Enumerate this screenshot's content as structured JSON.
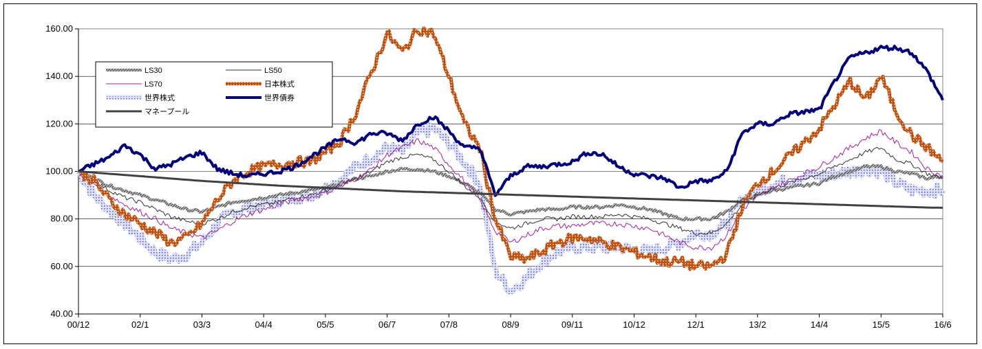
{
  "chart_data": {
    "type": "line",
    "title": "",
    "xlabel": "",
    "ylabel": "",
    "ylim": [
      40,
      160
    ],
    "y_ticks": [
      "40.00",
      "60.00",
      "80.00",
      "100.00",
      "120.00",
      "140.00",
      "160.00"
    ],
    "x_tick_labels": [
      "00/12",
      "02/1",
      "03/3",
      "04/4",
      "05/5",
      "06/7",
      "07/8",
      "08/9",
      "09/11",
      "10/12",
      "12/1",
      "13/2",
      "14/4",
      "15/5",
      "16/6"
    ],
    "grid": "horizontal",
    "legend_placement": "top-left",
    "series": [
      {
        "name": "LS30",
        "color": "#808080",
        "style": "thick-hatched",
        "values": [
          100,
          97,
          94,
          92,
          90,
          88,
          86,
          84,
          83,
          85,
          87,
          88,
          89,
          90,
          91,
          92,
          93,
          95,
          97,
          98,
          100,
          101,
          101,
          100,
          98,
          95,
          91,
          84,
          82,
          83,
          84,
          84,
          85,
          85,
          85,
          86,
          85,
          84,
          82,
          80,
          80,
          80,
          83,
          88,
          90,
          92,
          93,
          94,
          95,
          98,
          100,
          102,
          102,
          100,
          99,
          97,
          98
        ]
      },
      {
        "name": "LS50",
        "color": "#303030",
        "style": "thin",
        "values": [
          100,
          96,
          92,
          89,
          87,
          84,
          81,
          79,
          78,
          80,
          83,
          85,
          86,
          87,
          89,
          90,
          92,
          94,
          97,
          100,
          104,
          106,
          107,
          105,
          100,
          94,
          89,
          79,
          76,
          78,
          80,
          80,
          81,
          81,
          81,
          82,
          81,
          80,
          78,
          76,
          74,
          74,
          78,
          86,
          90,
          93,
          95,
          97,
          99,
          102,
          105,
          108,
          110,
          105,
          103,
          99,
          97
        ]
      },
      {
        "name": "LS70",
        "color": "#a020a0",
        "style": "thin",
        "values": [
          100,
          95,
          90,
          86,
          83,
          80,
          76,
          74,
          72,
          75,
          79,
          82,
          84,
          86,
          88,
          89,
          91,
          94,
          97,
          101,
          107,
          110,
          113,
          110,
          103,
          96,
          88,
          75,
          70,
          73,
          76,
          77,
          77,
          78,
          78,
          78,
          77,
          76,
          73,
          70,
          68,
          68,
          73,
          84,
          89,
          93,
          96,
          99,
          102,
          106,
          110,
          114,
          117,
          112,
          108,
          101,
          98
        ]
      },
      {
        "name": "日本株式",
        "color": "#b8470c",
        "style": "thick-dotted",
        "values": [
          100,
          96,
          88,
          82,
          78,
          74,
          70,
          72,
          78,
          88,
          96,
          100,
          102,
          103,
          104,
          104,
          108,
          113,
          125,
          142,
          158,
          150,
          160,
          158,
          140,
          120,
          110,
          80,
          64,
          63,
          66,
          70,
          72,
          72,
          70,
          68,
          66,
          64,
          62,
          62,
          60,
          60,
          65,
          85,
          95,
          100,
          106,
          112,
          118,
          128,
          138,
          130,
          140,
          125,
          115,
          110,
          104
        ]
      },
      {
        "name": "世界株式",
        "color": "#6470c8",
        "style": "thick-dotted",
        "values": [
          100,
          90,
          84,
          78,
          72,
          66,
          63,
          65,
          70,
          78,
          83,
          85,
          86,
          88,
          89,
          90,
          93,
          97,
          102,
          106,
          110,
          108,
          116,
          118,
          112,
          104,
          95,
          58,
          50,
          55,
          62,
          66,
          68,
          68,
          68,
          68,
          67,
          66,
          68,
          70,
          74,
          74,
          78,
          88,
          92,
          95,
          96,
          98,
          98,
          99,
          100,
          101,
          100,
          95,
          92,
          92,
          92
        ]
      },
      {
        "name": "世界債券",
        "color": "#00007a",
        "style": "thick",
        "values": [
          100,
          103,
          106,
          111,
          107,
          101,
          103,
          106,
          108,
          101,
          99,
          98,
          99,
          100,
          102,
          106,
          110,
          114,
          112,
          116,
          116,
          113,
          120,
          123,
          117,
          110,
          110,
          90,
          98,
          102,
          102,
          103,
          104,
          108,
          107,
          102,
          99,
          98,
          97,
          93,
          96,
          96,
          100,
          116,
          120,
          120,
          124,
          125,
          126,
          138,
          148,
          150,
          152,
          152,
          150,
          142,
          130
        ]
      },
      {
        "name": "マネープール",
        "color": "#404040",
        "style": "thick",
        "values": [
          100,
          99.5,
          99,
          98.5,
          98,
          97.5,
          97,
          96.5,
          96,
          95.6,
          95.2,
          94.8,
          94.4,
          94,
          93.7,
          93.4,
          93.1,
          92.8,
          92.5,
          92.2,
          91.9,
          91.6,
          91.4,
          91.2,
          91,
          90.8,
          90.6,
          90.4,
          90.2,
          90,
          89.8,
          89.6,
          89.4,
          89.2,
          89,
          88.8,
          88.6,
          88.4,
          88.2,
          88,
          87.8,
          87.6,
          87.4,
          87.2,
          87,
          86.8,
          86.6,
          86.4,
          86.2,
          86,
          85.8,
          85.6,
          85.4,
          85.2,
          85,
          84.8,
          84.7
        ]
      }
    ]
  }
}
